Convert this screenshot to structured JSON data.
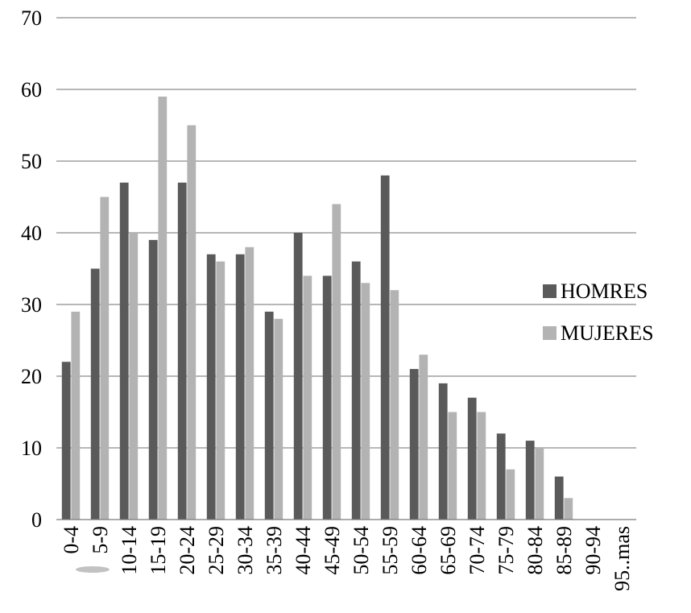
{
  "chart_data": {
    "type": "bar",
    "title": "",
    "xlabel": "",
    "ylabel": "",
    "ylim": [
      0,
      70
    ],
    "yticks": [
      0,
      10,
      20,
      30,
      40,
      50,
      60,
      70
    ],
    "grid": true,
    "legend_position": "right",
    "categories": [
      "0-4",
      "5-9",
      "10-14",
      "15-19",
      "20-24",
      "25-29",
      "30-34",
      "35-39",
      "40-44",
      "45-49",
      "50-54",
      "55-59",
      "60-64",
      "65-69",
      "70-74",
      "75-79",
      "80-84",
      "85-89",
      "90-94",
      "95..mas"
    ],
    "series": [
      {
        "name": "HOMRES",
        "color": "#5a5a5a",
        "values": [
          22,
          35,
          47,
          39,
          47,
          37,
          37,
          29,
          40,
          34,
          36,
          48,
          21,
          19,
          17,
          12,
          11,
          6,
          0,
          0
        ]
      },
      {
        "name": "MUJERES",
        "color": "#b3b3b3",
        "values": [
          29,
          45,
          40,
          59,
          55,
          36,
          38,
          28,
          34,
          44,
          33,
          32,
          23,
          15,
          15,
          7,
          10,
          3,
          0,
          0
        ]
      }
    ]
  }
}
